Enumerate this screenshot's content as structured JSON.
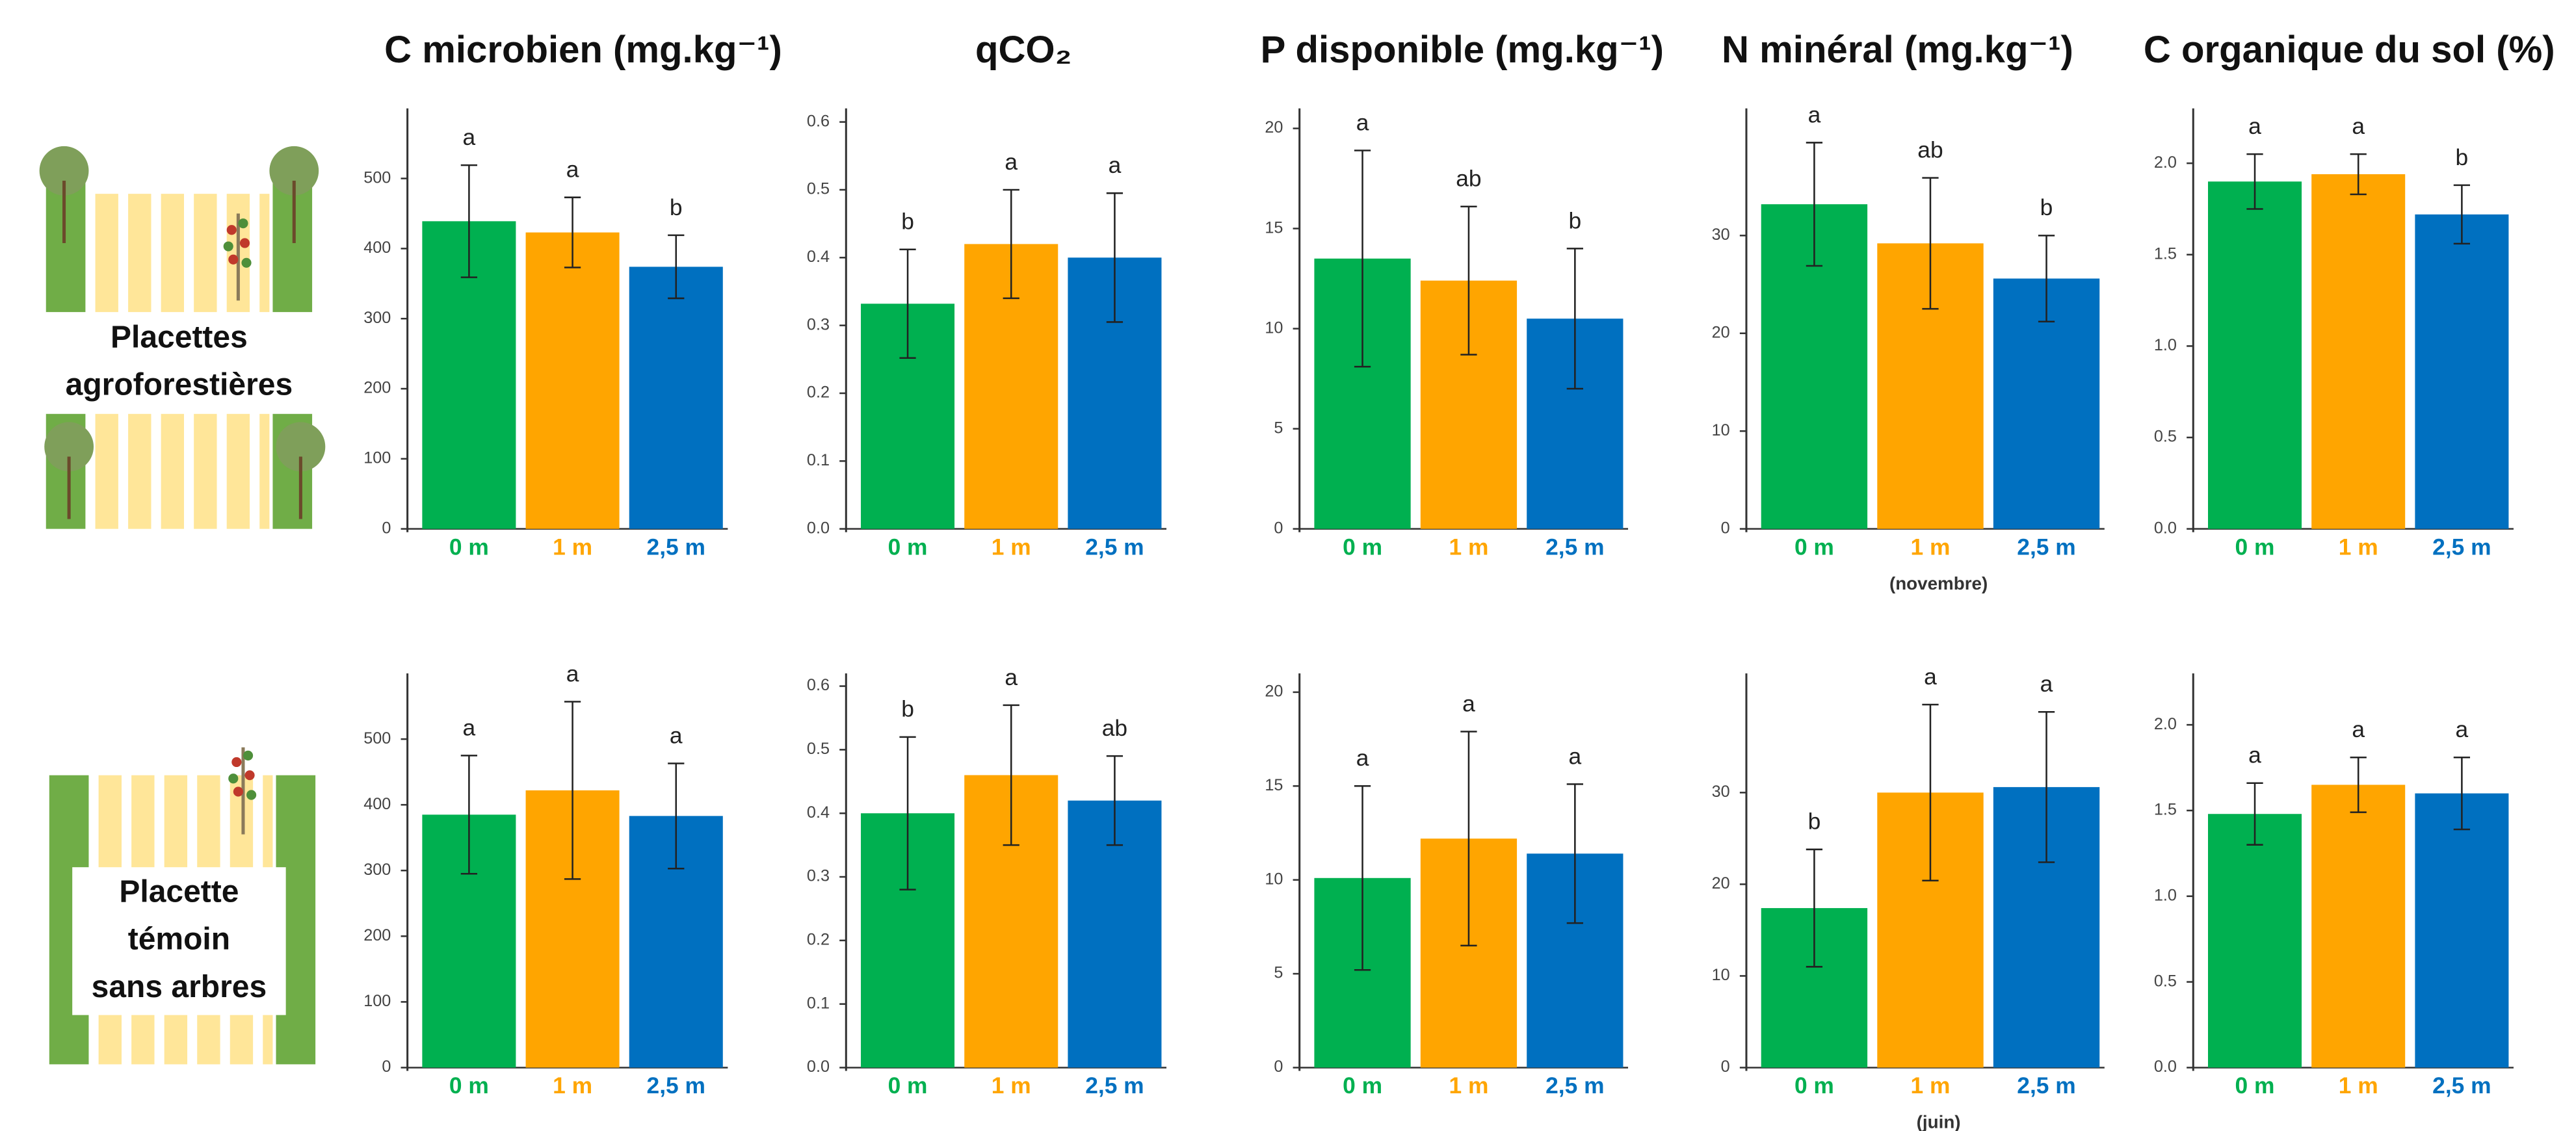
{
  "row_labels": [
    [
      "Placettes",
      "agroforestières"
    ],
    [
      "Placette",
      "témoin",
      "sans arbres"
    ]
  ],
  "chart_data": [
    {
      "type": "bar",
      "title": "C microbien (mg.kg⁻¹)",
      "categories": [
        "0 m",
        "1 m",
        "2,5 m"
      ],
      "colors": [
        "#00b050",
        "#ffa500",
        "#0070c0"
      ],
      "values": [
        439,
        423,
        374
      ],
      "errors": [
        80,
        50,
        45
      ],
      "annotations": [
        "a",
        "a",
        "b"
      ],
      "ylim": [
        0,
        600
      ],
      "yticks": [
        0,
        100,
        200,
        300,
        400,
        500
      ]
    },
    {
      "type": "bar",
      "title": "qCO₂",
      "categories": [
        "0 m",
        "1 m",
        "2,5 m"
      ],
      "colors": [
        "#00b050",
        "#ffa500",
        "#0070c0"
      ],
      "values": [
        0.332,
        0.42,
        0.4
      ],
      "errors": [
        0.08,
        0.08,
        0.095
      ],
      "annotations": [
        "b",
        "a",
        "a"
      ],
      "ylim": [
        0,
        0.62
      ],
      "yticks": [
        {
          "value": 0,
          "label": "0.0"
        },
        0.1,
        0.2,
        0.3,
        0.4,
        0.5,
        0.6
      ]
    },
    {
      "type": "bar",
      "title": "P disponible (mg.kg⁻¹)",
      "categories": [
        "0 m",
        "1 m",
        "2,5 m"
      ],
      "colors": [
        "#00b050",
        "#ffa500",
        "#0070c0"
      ],
      "values": [
        13.5,
        12.4,
        10.5
      ],
      "errors": [
        5.4,
        3.7,
        3.5
      ],
      "annotations": [
        "a",
        "ab",
        "b"
      ],
      "ylim": [
        0,
        21
      ],
      "yticks": [
        0,
        5,
        10,
        15,
        20
      ]
    },
    {
      "type": "bar",
      "title": "N minéral (mg.kg⁻¹)",
      "categories": [
        "0 m",
        "1 m",
        "2,5 m"
      ],
      "colors": [
        "#00b050",
        "#ffa500",
        "#0070c0"
      ],
      "values": [
        33.2,
        29.2,
        25.6
      ],
      "errors": [
        6.3,
        6.7,
        4.4
      ],
      "annotations": [
        "a",
        "ab",
        "b"
      ],
      "ylim": [
        0,
        43
      ],
      "yticks": [
        0,
        10,
        20,
        30
      ],
      "xlabel": "(novembre)"
    },
    {
      "type": "bar",
      "title": "C organique du sol (%)",
      "categories": [
        "0 m",
        "1 m",
        "2,5 m"
      ],
      "colors": [
        "#00b050",
        "#ffa500",
        "#0070c0"
      ],
      "values": [
        1.9,
        1.94,
        1.72
      ],
      "errors": [
        0.15,
        0.11,
        0.16
      ],
      "annotations": [
        "a",
        "a",
        "b"
      ],
      "ylim": [
        0,
        2.3
      ],
      "yticks": [
        {
          "value": 0,
          "label": "0.0"
        },
        0.5,
        {
          "value": 1,
          "label": "1.0"
        },
        1.5,
        {
          "value": 2,
          "label": "2.0"
        }
      ]
    },
    {
      "type": "bar",
      "categories": [
        "0 m",
        "1 m",
        "2,5 m"
      ],
      "colors": [
        "#00b050",
        "#ffa500",
        "#0070c0"
      ],
      "values": [
        385,
        422,
        383
      ],
      "errors": [
        90,
        135,
        80
      ],
      "annotations": [
        "a",
        "a",
        "a"
      ],
      "ylim": [
        0,
        600
      ],
      "yticks": [
        0,
        100,
        200,
        300,
        400,
        500
      ]
    },
    {
      "type": "bar",
      "categories": [
        "0 m",
        "1 m",
        "2,5 m"
      ],
      "colors": [
        "#00b050",
        "#ffa500",
        "#0070c0"
      ],
      "values": [
        0.4,
        0.46,
        0.42
      ],
      "errors": [
        0.12,
        0.11,
        0.07
      ],
      "annotations": [
        "b",
        "a",
        "ab"
      ],
      "ylim": [
        0,
        0.62
      ],
      "yticks": [
        {
          "value": 0,
          "label": "0.0"
        },
        0.1,
        0.2,
        0.3,
        0.4,
        0.5,
        0.6
      ]
    },
    {
      "type": "bar",
      "categories": [
        "0 m",
        "1 m",
        "2,5 m"
      ],
      "colors": [
        "#00b050",
        "#ffa500",
        "#0070c0"
      ],
      "values": [
        10.1,
        12.2,
        11.4
      ],
      "errors": [
        4.9,
        5.7,
        3.7
      ],
      "annotations": [
        "a",
        "a",
        "a"
      ],
      "ylim": [
        0,
        21
      ],
      "yticks": [
        0,
        5,
        10,
        15,
        20
      ]
    },
    {
      "type": "bar",
      "categories": [
        "0 m",
        "1 m",
        "2,5 m"
      ],
      "colors": [
        "#00b050",
        "#ffa500",
        "#0070c0"
      ],
      "values": [
        17.4,
        30.0,
        30.6
      ],
      "errors": [
        6.4,
        9.6,
        8.2
      ],
      "annotations": [
        "b",
        "a",
        "a"
      ],
      "ylim": [
        0,
        43
      ],
      "yticks": [
        0,
        10,
        20,
        30
      ],
      "xlabel": "(juin)"
    },
    {
      "type": "bar",
      "categories": [
        "0 m",
        "1 m",
        "2,5 m"
      ],
      "colors": [
        "#00b050",
        "#ffa500",
        "#0070c0"
      ],
      "values": [
        1.48,
        1.65,
        1.6
      ],
      "errors": [
        0.18,
        0.16,
        0.21
      ],
      "annotations": [
        "a",
        "a",
        "a"
      ],
      "ylim": [
        0,
        2.3
      ],
      "yticks": [
        {
          "value": 0,
          "label": "0.0"
        },
        0.5,
        {
          "value": 1,
          "label": "1.0"
        },
        1.5,
        {
          "value": 2,
          "label": "2.0"
        }
      ]
    }
  ]
}
